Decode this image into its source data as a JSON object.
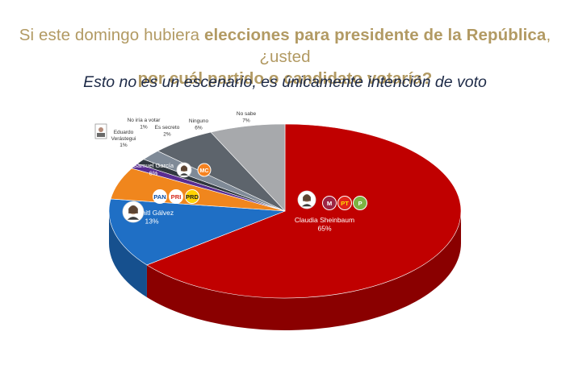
{
  "header": {
    "question_pre": "Si este domingo hubiera ",
    "question_bold_1": "elecciones para presidente de la República",
    "question_post_1": ", ¿usted",
    "question_bold_2": "por cuál partido o candidato votaría?",
    "subtitle": "Esto no es un escenario, es únicamente intención de voto"
  },
  "chart_data": {
    "type": "pie",
    "title": "Si este domingo hubiera elecciones para presidente de la República, ¿usted por cuál partido o candidato votaría?",
    "subtitle": "Esto no es un escenario, es únicamente intención de voto",
    "categories": [
      "Claudia Sheinbaum",
      "Xóchitl Gálvez",
      "Samuel García",
      "Eduardo Verástegui",
      "No iría a votar",
      "Es secreto",
      "Ninguno",
      "No sabe"
    ],
    "values": [
      65,
      13,
      6,
      1,
      1,
      2,
      6,
      7
    ],
    "labels": [
      "65%",
      "13%",
      "6%",
      "1%",
      "1%",
      "2%",
      "6%",
      "7%"
    ],
    "colors": [
      "#c00000",
      "#1f6fc5",
      "#f0861d",
      "#5a2d91",
      "#30383f",
      "#7f8a97",
      "#5d646c",
      "#a7a9ac"
    ],
    "legend": "none",
    "party_logos": {
      "sheinbaum": [
        "MORENA",
        "PT",
        "PVEM"
      ],
      "galvez": [
        "PAN",
        "PRI",
        "PRD"
      ],
      "garcia": [
        "MC"
      ]
    }
  }
}
